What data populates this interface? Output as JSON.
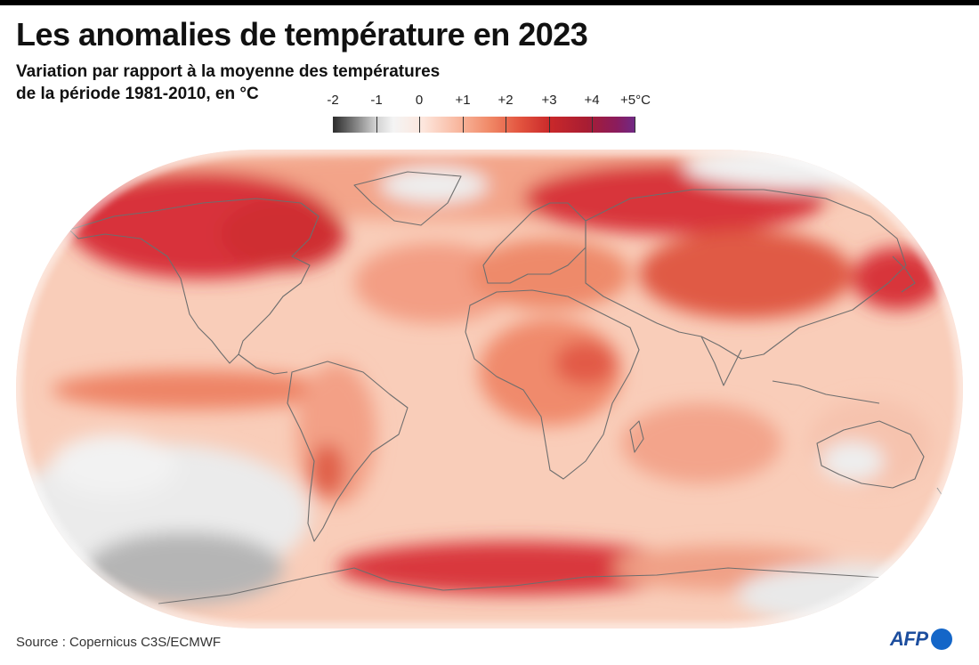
{
  "title": "Les anomalies de température en 2023",
  "subtitle": {
    "line1": "Variation par rapport à la moyenne des températures",
    "line2": "de la période 1981-2010, en °C"
  },
  "legend": {
    "labels": [
      "-2",
      "-1",
      "0",
      "+1",
      "+2",
      "+3",
      "+4",
      "+5°C"
    ],
    "colors": {
      "cold_strong": "#2b2b2b",
      "cold": "#9a9a9a",
      "neutral": "#f4f4f4",
      "warm_light": "#f8b59c",
      "warm": "#e2533e",
      "hot": "#b11f2d",
      "extreme": "#6f2a86"
    }
  },
  "map": {
    "projection": "Equal Earth",
    "ocean_base_color": "#f9cdb9",
    "coastline_color": "#6e6e6e"
  },
  "source": "Source : Copernicus C3S/ECMWF",
  "logo": {
    "text": "AFP",
    "dot_color": "#1466c8",
    "text_color": "#1d4e9e"
  }
}
